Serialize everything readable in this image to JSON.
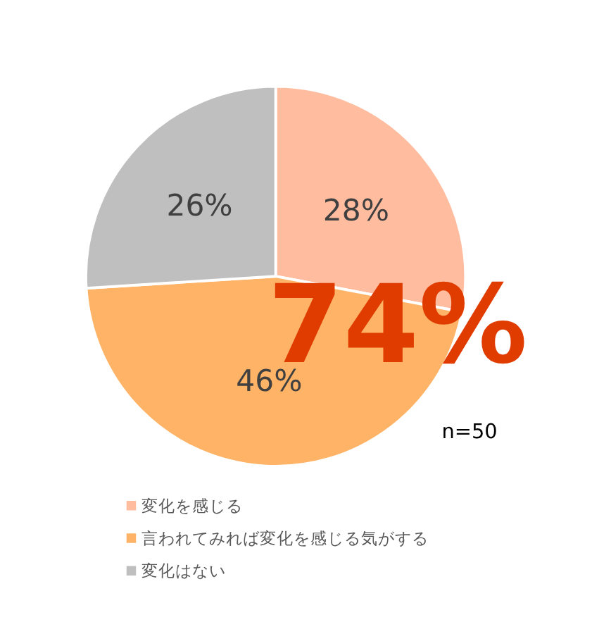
{
  "chart_data": {
    "type": "pie",
    "categories": [
      "変化を感じる",
      "言われてみれば変化を感じる気がする",
      "変化はない"
    ],
    "values": [
      28,
      46,
      26
    ],
    "colors": [
      "#ffbc9f",
      "#ffb366",
      "#bfbfbf"
    ],
    "value_labels": [
      "28%",
      "46%",
      "26%"
    ],
    "legend": "bottom",
    "annotations": [
      "74%",
      "n=50"
    ]
  }
}
